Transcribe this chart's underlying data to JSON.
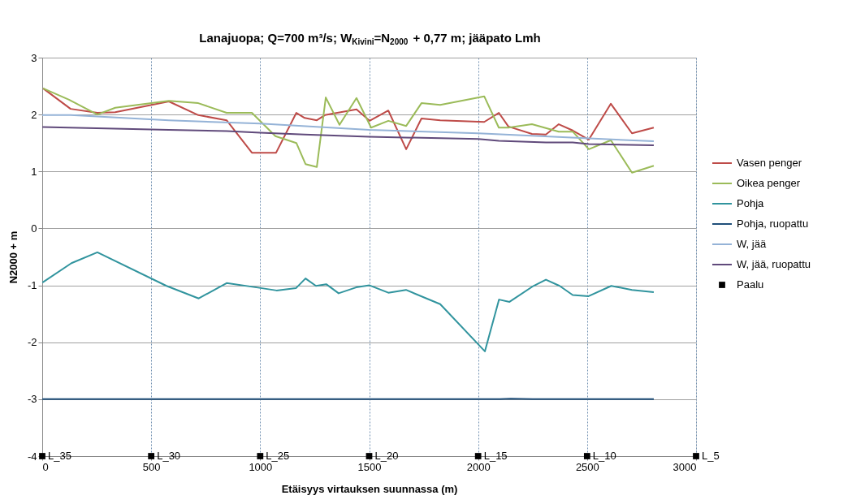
{
  "chart_data": {
    "type": "line",
    "title": "Lanajuopa; Q=700 m³/s; W$_{Kivini}$=N$_{2000}$ + 0,77 m; jääpato Lmh",
    "xlabel": "Etäisyys virtauksen suunnassa (m)",
    "ylabel": "N2000 + m",
    "annotations": [
      {
        "text": "L_35",
        "x": 0,
        "y": -4
      },
      {
        "text": "L_30",
        "x": 500,
        "y": -4
      },
      {
        "text": "L_25",
        "x": 1000,
        "y": -4
      },
      {
        "text": "L_20",
        "x": 1500,
        "y": -4
      },
      {
        "text": "L_15",
        "x": 2000,
        "y": -4
      },
      {
        "text": "L_10",
        "x": 2500,
        "y": -4
      },
      {
        "text": "L_5",
        "x": 3000,
        "y": -4
      }
    ],
    "xlim": [
      0,
      3000
    ],
    "xticks": [
      0,
      500,
      1000,
      1500,
      2000,
      2500,
      3000
    ],
    "ylim": [
      -4,
      3
    ],
    "yticks": [
      -4,
      -3,
      -2,
      -1,
      0,
      1,
      2,
      3
    ],
    "grid": true,
    "legend": "right",
    "series": [
      {
        "name": "Vasen penger",
        "color": "#be4b48",
        "x": [
          4,
          130,
          253,
          335,
          581,
          716,
          846,
          962,
          1073,
          1166,
          1204,
          1260,
          1297,
          1442,
          1502,
          1588,
          1670,
          1740,
          1826,
          2028,
          2095,
          2139,
          2247,
          2311,
          2370,
          2434,
          2508,
          2609,
          2706,
          2806
        ],
        "values": [
          2.46,
          2.1,
          2.03,
          2.04,
          2.23,
          1.99,
          1.9,
          1.33,
          1.33,
          2.03,
          1.94,
          1.9,
          1.99,
          2.09,
          1.89,
          2.07,
          1.39,
          1.93,
          1.9,
          1.87,
          2.03,
          1.79,
          1.66,
          1.65,
          1.83,
          1.72,
          1.56,
          2.19,
          1.67,
          1.77
        ]
      },
      {
        "name": "Oikea penger",
        "color": "#9bbb59",
        "x": [
          4,
          123,
          253,
          335,
          581,
          716,
          846,
          962,
          1070,
          1166,
          1208,
          1260,
          1301,
          1364,
          1442,
          1509,
          1588,
          1670,
          1740,
          1826,
          2028,
          2095,
          2139,
          2247,
          2370,
          2434,
          2508,
          2609,
          2706,
          2806
        ],
        "values": [
          2.46,
          2.26,
          2.0,
          2.12,
          2.24,
          2.2,
          2.03,
          2.03,
          1.62,
          1.5,
          1.13,
          1.08,
          2.3,
          1.82,
          2.29,
          1.77,
          1.89,
          1.8,
          2.2,
          2.17,
          2.32,
          1.77,
          1.77,
          1.83,
          1.7,
          1.7,
          1.39,
          1.55,
          0.98,
          1.1
        ]
      },
      {
        "name": "Pohja",
        "color": "#31949e",
        "x": [
          1,
          134,
          253,
          570,
          718,
          846,
          990,
          1075,
          1164,
          1208,
          1256,
          1303,
          1360,
          1446,
          1502,
          1588,
          1669,
          1826,
          2031,
          2096,
          2144,
          2254,
          2311,
          2374,
          2434,
          2507,
          2611,
          2706,
          2806
        ],
        "values": [
          -0.95,
          -0.61,
          -0.42,
          -1.01,
          -1.23,
          -0.96,
          -1.04,
          -1.09,
          -1.05,
          -0.88,
          -1.01,
          -0.98,
          -1.14,
          -1.03,
          -1.0,
          -1.13,
          -1.08,
          -1.33,
          -2.16,
          -1.25,
          -1.29,
          -1.01,
          -0.9,
          -1.01,
          -1.17,
          -1.19,
          -1.01,
          -1.08,
          -1.12
        ]
      },
      {
        "name": "Pohja, ruopattu",
        "color": "#1f4e79",
        "x": [
          0,
          2100,
          2150,
          2250,
          2806
        ],
        "values": [
          -3.0,
          -3.0,
          -2.99,
          -3.0,
          -3.0
        ]
      },
      {
        "name": "W, jää",
        "color": "#95b3d7",
        "x": [
          0,
          130,
          581,
          1000,
          1500,
          2001,
          2806
        ],
        "values": [
          1.99,
          1.99,
          1.9,
          1.84,
          1.73,
          1.67,
          1.53
        ]
      },
      {
        "name": "W, jää, ruopattu",
        "color": "#604a7b",
        "x": [
          0,
          581,
          846,
          1000,
          1204,
          1500,
          2001,
          2095,
          2311,
          2434,
          2508,
          2806
        ],
        "values": [
          1.78,
          1.73,
          1.71,
          1.68,
          1.65,
          1.61,
          1.57,
          1.54,
          1.51,
          1.51,
          1.48,
          1.46
        ]
      },
      {
        "name": "Paalu",
        "type": "scatter",
        "marker": "square",
        "color": "#000000",
        "x": [
          0,
          500,
          1000,
          1500,
          2000,
          2500,
          3000
        ],
        "values": [
          -4,
          -4,
          -4,
          -4,
          -4,
          -4,
          -4
        ]
      }
    ]
  }
}
